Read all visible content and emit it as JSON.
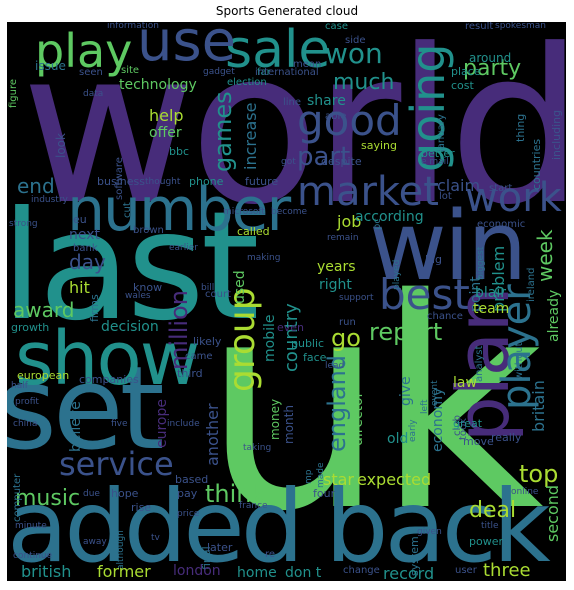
{
  "title": "Sports  Generated cloud",
  "colors": {
    "background": "#000000",
    "purple": "#472c7a",
    "indigo": "#3b528b",
    "blue": "#2c728e",
    "teal": "#21918c",
    "green": "#27ad81",
    "lime": "#5ec962",
    "yellow": "#aadc32",
    "dark": "#440154"
  },
  "words": {
    "world": "world",
    "uk": "uk",
    "last": "last",
    "set": "set",
    "added": "added",
    "back": "back",
    "win": "win",
    "show": "show",
    "number": "number",
    "plan": "plan",
    "sale": "sale",
    "use": "use",
    "play": "play",
    "good": "good",
    "going": "going",
    "market": "market",
    "work": "work",
    "best": "best",
    "service": "service",
    "player": "player",
    "group": "group",
    "won": "won",
    "party": "party",
    "much": "much",
    "part": "part",
    "games": "games",
    "think": "think",
    "music": "music",
    "england": "england",
    "report": "report",
    "go": "go",
    "top": "top",
    "deal": "deal",
    "million": "million",
    "award": "award",
    "end": "end",
    "day": "day",
    "technology": "technology",
    "help": "help",
    "offer": "offer",
    "share": "share",
    "increase": "increase",
    "job": "job",
    "according": "according",
    "week": "week",
    "claim": "claim",
    "problem": "problem",
    "years": "years",
    "right": "right",
    "country": "country",
    "mobile": "mobile",
    "blair": "blair",
    "team": "team",
    "point": "point",
    "hit": "hit",
    "next": "next",
    "decision": "decision",
    "used": "used",
    "british": "british",
    "former": "former",
    "london": "london",
    "home": "home",
    "dont": "don t",
    "record": "record",
    "three": "three",
    "star": "star",
    "expected": "expected",
    "old": "old",
    "economy": "economy",
    "law": "law",
    "britain": "britain",
    "already": "already",
    "second": "second",
    "europe": "europe",
    "believe": "believe",
    "money": "money",
    "another": "another",
    "director": "director",
    "month": "month",
    "give": "give",
    "business": "business",
    "issue": "issue",
    "site": "site",
    "around": "around",
    "place": "place",
    "cost": "cost",
    "election": "election",
    "case": "case",
    "side": "side",
    "able": "able",
    "result": "result",
    "far": "far",
    "international": "international",
    "figure": "figure",
    "seen": "seen",
    "gadget": "gadget",
    "information": "information",
    "spokesman": "spokesman",
    "mean": "mean",
    "line": "line",
    "january": "january",
    "thing": "thing",
    "countries": "countries",
    "including": "including",
    "better": "better",
    "saying": "saying",
    "bbc": "bbc",
    "look": "look",
    "software": "software",
    "phone": "phone",
    "future": "future",
    "despite": "despite",
    "eu": "eu",
    "computer": "computer",
    "called": "called",
    "economic": "economic",
    "start": "start",
    "lot": "lot",
    "bank": "bank",
    "brown": "brown",
    "know": "know",
    "pc": "pc",
    "big": "big",
    "firms": "firms",
    "growth": "growth",
    "chance": "chance",
    "ireland": "ireland",
    "even": "even",
    "public": "public",
    "face": "face",
    "likely": "likely",
    "came": "came",
    "third": "third",
    "companies": "companies",
    "european": "european",
    "analyst": "analyst",
    "without": "without",
    "club": "club",
    "great": "great",
    "really": "really",
    "move": "move",
    "based": "based",
    "hope": "hope",
    "pay": "pay",
    "rise": "rise",
    "power": "power",
    "system": "system",
    "later": "later",
    "change": "change",
    "user": "user",
    "four": "four",
    "made": "made",
    "court": "court",
    "run": "run",
    "wales": "wales",
    "data": "data",
    "strong": "strong",
    "industry": "industry",
    "half": "half",
    "profit": "profit",
    "china": "china",
    "minute": "minute",
    "continue": "continue",
    "due": "due",
    "away": "away",
    "although": "although",
    "tv": "tv",
    "final": "final",
    "price": "price",
    "france": "france",
    "given": "given",
    "title": "title",
    "online": "online",
    "early": "early",
    "took": "took",
    "include": "include",
    "taking": "taking",
    "five": "five",
    "left": "left",
    "event": "event",
    "biggest": "biggest",
    "support": "support",
    "making": "making",
    "remain": "remain",
    "become": "become",
    "microsoft": "microsoft",
    "earlier": "earlier",
    "bill": "bill",
    "played": "played",
    "got": "got",
    "thought": "thought",
    "e_mail": "e mail",
    "cut": "cut",
    "lead": "lead",
    "re": "re",
    "mp": "mp"
  }
}
